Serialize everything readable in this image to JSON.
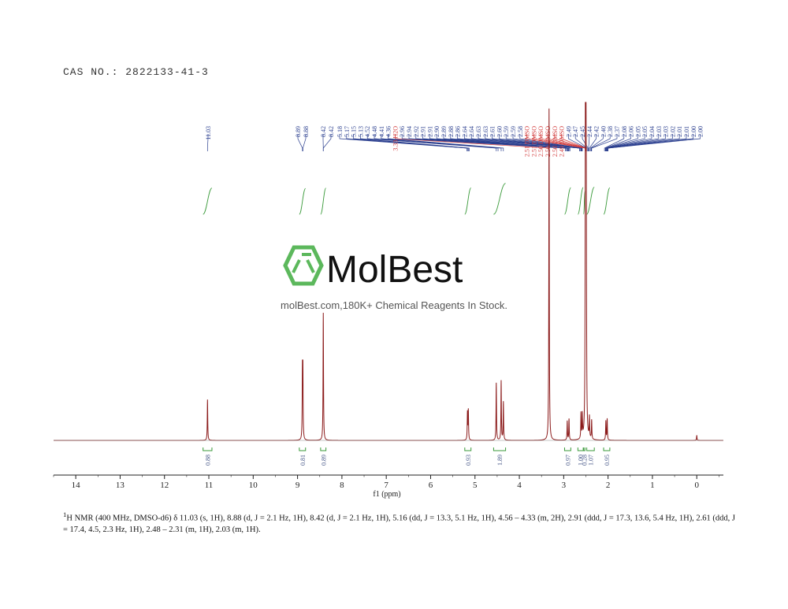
{
  "cas": "CAS NO.: 2822133-41-3",
  "watermark": {
    "brand": "MolBest",
    "tagline": "molBest.com,180K+ Chemical Reagents In Stock.",
    "logo_color": "#5cb85c"
  },
  "description": {
    "prefix_sup": "1",
    "text": "H NMR (400 MHz, DMSO-d6) δ 11.03 (s, 1H), 8.88 (d, J = 2.1 Hz, 1H), 8.42 (d, J = 2.1 Hz, 1H), 5.16 (dd, J = 13.3, 5.1 Hz, 1H), 4.56 – 4.33 (m, 2H), 2.91 (ddd, J = 17.3, 13.6, 5.4 Hz, 1H), 2.61 (ddd, J = 17.4, 4.5, 2.3 Hz, 1H), 2.48 – 2.31 (m, 1H), 2.03 (m, 1H)."
  },
  "chart_data": {
    "type": "line",
    "xlabel": "f1 (ppm)",
    "xlim": [
      14.5,
      -0.6
    ],
    "x_reversed": true,
    "ticks": [
      14,
      13,
      12,
      11,
      10,
      9,
      8,
      7,
      6,
      5,
      4,
      3,
      2,
      1,
      0
    ],
    "colors": {
      "spectrum": "#8b1a1a",
      "peak_label": "#2b3f8f",
      "solvent_label": "#d23a3a",
      "integral": "#3a9a3a"
    },
    "peaks": [
      {
        "ppm": 11.03,
        "height": 0.96
      },
      {
        "ppm": 8.89,
        "height": 1.5
      },
      {
        "ppm": 8.88,
        "height": 1.5
      },
      {
        "ppm": 8.42,
        "height": 1.5
      },
      {
        "ppm": 8.42,
        "height": 1.5
      },
      {
        "ppm": 5.17,
        "height": 0.65
      },
      {
        "ppm": 5.15,
        "height": 0.7
      },
      {
        "ppm": 4.52,
        "height": 1.35
      },
      {
        "ppm": 4.41,
        "height": 1.4
      },
      {
        "ppm": 4.36,
        "height": 0.9
      },
      {
        "ppm": 3.33,
        "height": 7.8
      },
      {
        "ppm": 2.92,
        "height": 0.45
      },
      {
        "ppm": 2.88,
        "height": 0.5
      },
      {
        "ppm": 2.61,
        "height": 0.6
      },
      {
        "ppm": 2.58,
        "height": 0.55
      },
      {
        "ppm": 2.51,
        "height": 7.5
      },
      {
        "ppm": 2.5,
        "height": 7.3
      },
      {
        "ppm": 2.49,
        "height": 4.0
      },
      {
        "ppm": 2.42,
        "height": 0.5
      },
      {
        "ppm": 2.37,
        "height": 0.45
      },
      {
        "ppm": 2.05,
        "height": 0.45
      },
      {
        "ppm": 2.02,
        "height": 0.5
      },
      {
        "ppm": 0.0,
        "height": 0.12
      }
    ],
    "peak_labels": [
      {
        "text": "11.03",
        "solvent": false
      },
      {
        "text": "8.89",
        "solvent": false
      },
      {
        "text": "8.88",
        "solvent": false
      },
      {
        "text": "8.42",
        "solvent": false
      },
      {
        "text": "8.42",
        "solvent": false
      },
      {
        "text": "5.18",
        "solvent": false
      },
      {
        "text": "5.17",
        "solvent": false
      },
      {
        "text": "5.15",
        "solvent": false
      },
      {
        "text": "5.13",
        "solvent": false
      },
      {
        "text": "4.52",
        "solvent": false
      },
      {
        "text": "4.48",
        "solvent": false
      },
      {
        "text": "4.41",
        "solvent": false
      },
      {
        "text": "4.36",
        "solvent": false
      },
      {
        "text": "3.33 H2O",
        "solvent": true
      },
      {
        "text": "2.96",
        "solvent": false
      },
      {
        "text": "2.94",
        "solvent": false
      },
      {
        "text": "2.92",
        "solvent": false
      },
      {
        "text": "2.91",
        "solvent": false
      },
      {
        "text": "2.91",
        "solvent": false
      },
      {
        "text": "2.90",
        "solvent": false
      },
      {
        "text": "2.89",
        "solvent": false
      },
      {
        "text": "2.88",
        "solvent": false
      },
      {
        "text": "2.86",
        "solvent": false
      },
      {
        "text": "2.64",
        "solvent": false
      },
      {
        "text": "2.64",
        "solvent": false
      },
      {
        "text": "2.63",
        "solvent": false
      },
      {
        "text": "2.63",
        "solvent": false
      },
      {
        "text": "2.61",
        "solvent": false
      },
      {
        "text": "2.60",
        "solvent": false
      },
      {
        "text": "2.59",
        "solvent": false
      },
      {
        "text": "2.59",
        "solvent": false
      },
      {
        "text": "2.58",
        "solvent": false
      },
      {
        "text": "2.51 DMSO",
        "solvent": true
      },
      {
        "text": "2.51 DMSO",
        "solvent": true
      },
      {
        "text": "2.50 DMSO",
        "solvent": true
      },
      {
        "text": "2.50 DMSO",
        "solvent": true
      },
      {
        "text": "2.50 DMSO",
        "solvent": true
      },
      {
        "text": "2.49 DMSO",
        "solvent": true
      },
      {
        "text": "2.49",
        "solvent": false
      },
      {
        "text": "2.47",
        "solvent": false
      },
      {
        "text": "2.45",
        "solvent": false
      },
      {
        "text": "2.44",
        "solvent": false
      },
      {
        "text": "2.42",
        "solvent": false
      },
      {
        "text": "2.40",
        "solvent": false
      },
      {
        "text": "2.38",
        "solvent": false
      },
      {
        "text": "2.37",
        "solvent": false
      },
      {
        "text": "2.08",
        "solvent": false
      },
      {
        "text": "2.06",
        "solvent": false
      },
      {
        "text": "2.05",
        "solvent": false
      },
      {
        "text": "2.05",
        "solvent": false
      },
      {
        "text": "2.04",
        "solvent": false
      },
      {
        "text": "2.03",
        "solvent": false
      },
      {
        "text": "2.03",
        "solvent": false
      },
      {
        "text": "2.02",
        "solvent": false
      },
      {
        "text": "2.01",
        "solvent": false
      },
      {
        "text": "2.01",
        "solvent": false
      },
      {
        "text": "2.00",
        "solvent": false
      },
      {
        "text": "2.00",
        "solvent": false
      }
    ],
    "integrals": [
      {
        "from": 11.13,
        "to": 10.93,
        "value": "0.88"
      },
      {
        "from": 8.96,
        "to": 8.82,
        "value": "0.81"
      },
      {
        "from": 8.48,
        "to": 8.36,
        "value": "0.89"
      },
      {
        "from": 5.23,
        "to": 5.09,
        "value": "0.93"
      },
      {
        "from": 4.58,
        "to": 4.31,
        "value": "1.89"
      },
      {
        "from": 2.98,
        "to": 2.84,
        "value": "0.97"
      },
      {
        "from": 2.68,
        "to": 2.56,
        "value": "1.00"
      },
      {
        "from": 2.55,
        "to": 2.52,
        "value": "0.28"
      },
      {
        "from": 2.48,
        "to": 2.31,
        "value": "1.07"
      },
      {
        "from": 2.1,
        "to": 1.96,
        "value": "0.95"
      }
    ]
  }
}
